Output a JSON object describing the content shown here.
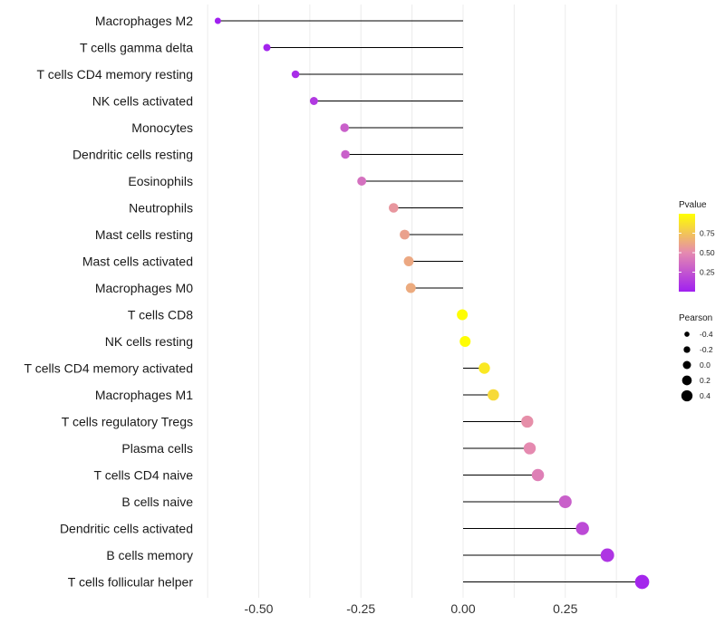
{
  "chart_data": {
    "type": "lollipop",
    "title": "",
    "xlabel": "",
    "ylabel": "",
    "xlim": [
      -0.63,
      0.46
    ],
    "xticks": [
      -0.5,
      -0.25,
      0.0,
      0.25
    ],
    "xtick_labels": [
      "-0.50",
      "-0.25",
      "0.00",
      "0.25"
    ],
    "categories": [
      "Macrophages M2",
      "T cells gamma delta",
      "T cells CD4 memory resting",
      "NK cells activated",
      "Monocytes",
      "Dendritic cells resting",
      "Eosinophils",
      "Neutrophils",
      "Mast cells resting",
      "Mast cells activated",
      "Macrophages M0",
      "T cells CD8",
      "NK cells resting",
      "T cells CD4 memory activated",
      "Macrophages M1",
      "T cells regulatory  Tregs",
      "Plasma cells",
      "T cells CD4 naive",
      "B cells naive",
      "Dendritic cells activated",
      "B cells memory",
      "T cells follicular helper"
    ],
    "pearson": [
      -0.6,
      -0.48,
      -0.41,
      -0.365,
      -0.29,
      -0.288,
      -0.248,
      -0.17,
      -0.143,
      -0.133,
      -0.128,
      -0.002,
      0.005,
      0.052,
      0.074,
      0.157,
      0.163,
      0.183,
      0.25,
      0.292,
      0.353,
      0.438
    ],
    "pvalue": [
      0.0,
      0.02,
      0.06,
      0.12,
      0.3,
      0.3,
      0.38,
      0.55,
      0.6,
      0.63,
      0.64,
      0.99,
      0.99,
      0.9,
      0.84,
      0.52,
      0.5,
      0.45,
      0.3,
      0.2,
      0.1,
      0.03
    ],
    "legend_pvalue": {
      "title": "Pvalue",
      "ticks": [
        0.25,
        0.5,
        0.75
      ],
      "tick_labels": [
        "0.25",
        "0.50",
        "0.75"
      ],
      "range": [
        0.0,
        1.0
      ],
      "colors": [
        "#a020f0",
        "#e58ab0",
        "#ffff00"
      ],
      "position": "right"
    },
    "legend_pearson": {
      "title": "Pearson",
      "values": [
        -0.4,
        -0.2,
        0.0,
        0.2,
        0.4
      ],
      "labels": [
        "-0.4",
        "-0.2",
        "0.0",
        "0.2",
        "0.4"
      ],
      "position": "right"
    }
  }
}
